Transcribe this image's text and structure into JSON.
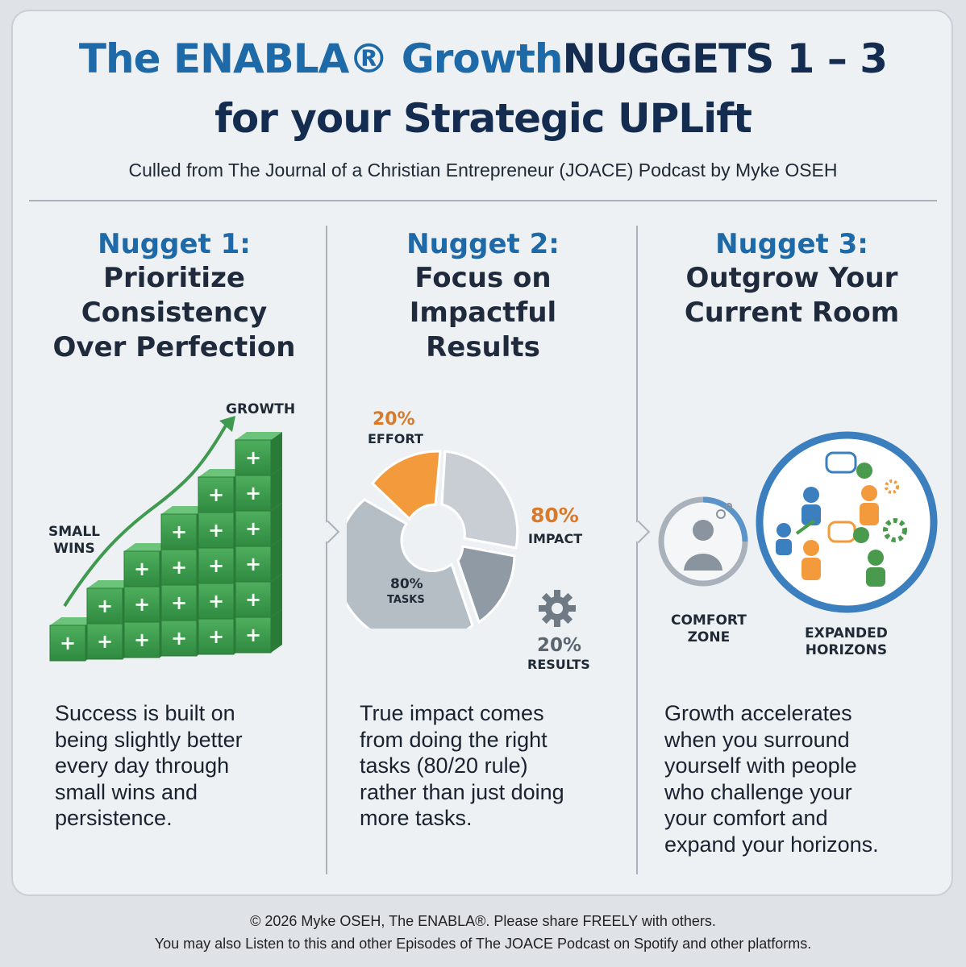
{
  "header": {
    "title_part1": "The ENABLA® Growth",
    "title_part2": "NUGGETS 1 – 3",
    "title_line2": "for your Strategic UPLift",
    "subtitle": "Culled from The Journal of a Christian Entrepreneur (JOACE) Podcast by Myke OSEH"
  },
  "nuggets": [
    {
      "heading": "Nugget 1:",
      "title_lines": [
        "Prioritize",
        "Consistency",
        "Over Perfection"
      ],
      "labels": {
        "growth": "GROWTH",
        "small_wins_1": "SMALL",
        "small_wins_2": "WINS"
      },
      "description_lines": [
        "Success is built on",
        "being slightly better",
        "every day through",
        "small wins and",
        "persistence."
      ]
    },
    {
      "heading": "Nugget 2:",
      "title_lines": [
        "Focus on",
        "Impactful",
        "Results"
      ],
      "labels": {
        "effort_pct": "20%",
        "effort": "EFFORT",
        "impact_pct": "80%",
        "impact": "IMPACT",
        "tasks_pct": "80%",
        "tasks": "TASKS",
        "results_pct": "20%",
        "results": "RESULTS"
      },
      "description_lines": [
        "True impact comes",
        "from doing the right",
        "tasks (80/20 rule)",
        "rather than just doing",
        "more tasks."
      ]
    },
    {
      "heading": "Nugget 3:",
      "title_lines": [
        "Outgrow Your",
        "Current Room"
      ],
      "labels": {
        "comfort_1": "COMFORT",
        "comfort_2": "ZONE",
        "expanded_1": "EXPANDED",
        "expanded_2": "HORIZONS"
      },
      "description_lines": [
        "Growth accelerates",
        "when you surround",
        "yourself with people",
        "who challenge your",
        "your comfort and",
        "expand your horizons."
      ]
    }
  ],
  "colors": {
    "blue": "#1e6aa8",
    "navy": "#142c4f",
    "green": "#3e9a4e",
    "orange": "#f39a3c",
    "gray": "#a9b1ba"
  },
  "footer": {
    "line1": "© 2026 Myke OSEH, The ENABLA®. Please share FREELY with others.",
    "line2": "You may also Listen to this and other Episodes of The JOACE Podcast on Spotify and other platforms."
  }
}
